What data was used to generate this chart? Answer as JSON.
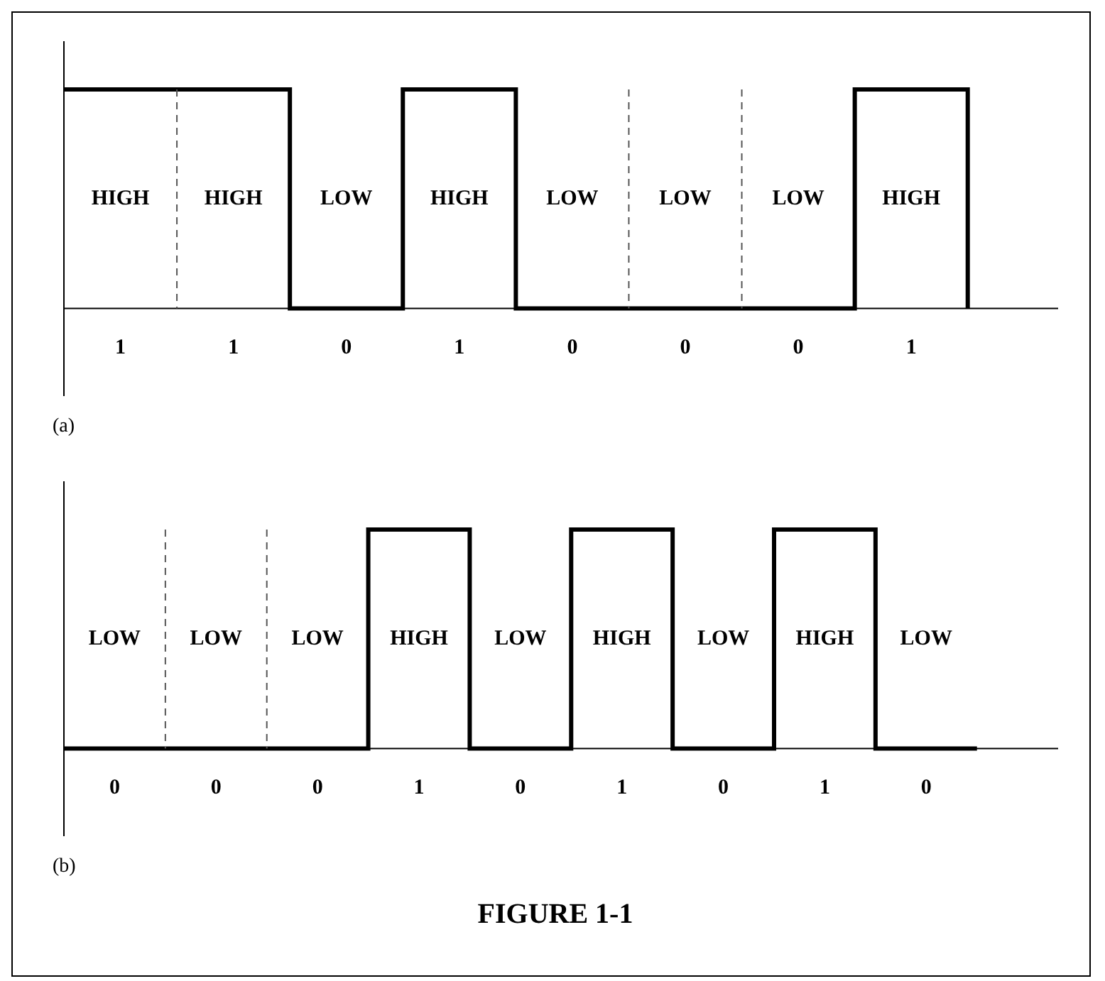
{
  "chart_data": [
    {
      "type": "other",
      "color": "#000000",
      "values": [
        1,
        1,
        0,
        1,
        0,
        0,
        0,
        1
      ],
      "value_labels": [
        "1",
        "1",
        "0",
        "1",
        "0",
        "0",
        "0",
        "1"
      ],
      "annotations": [
        "(a)",
        "HIGH",
        "HIGH",
        "LOW",
        "HIGH",
        "LOW",
        "LOW",
        "LOW",
        "HIGH"
      ]
    },
    {
      "type": "other",
      "color": "#000000",
      "title": "FIGURE 1-1",
      "values": [
        0,
        0,
        0,
        1,
        0,
        1,
        0,
        1,
        0
      ],
      "value_labels": [
        "0",
        "0",
        "0",
        "1",
        "0",
        "1",
        "0",
        "1",
        "0"
      ],
      "annotations": [
        "(b)",
        "LOW",
        "LOW",
        "LOW",
        "HIGH",
        "LOW",
        "HIGH",
        "LOW",
        "HIGH",
        "LOW"
      ]
    }
  ]
}
